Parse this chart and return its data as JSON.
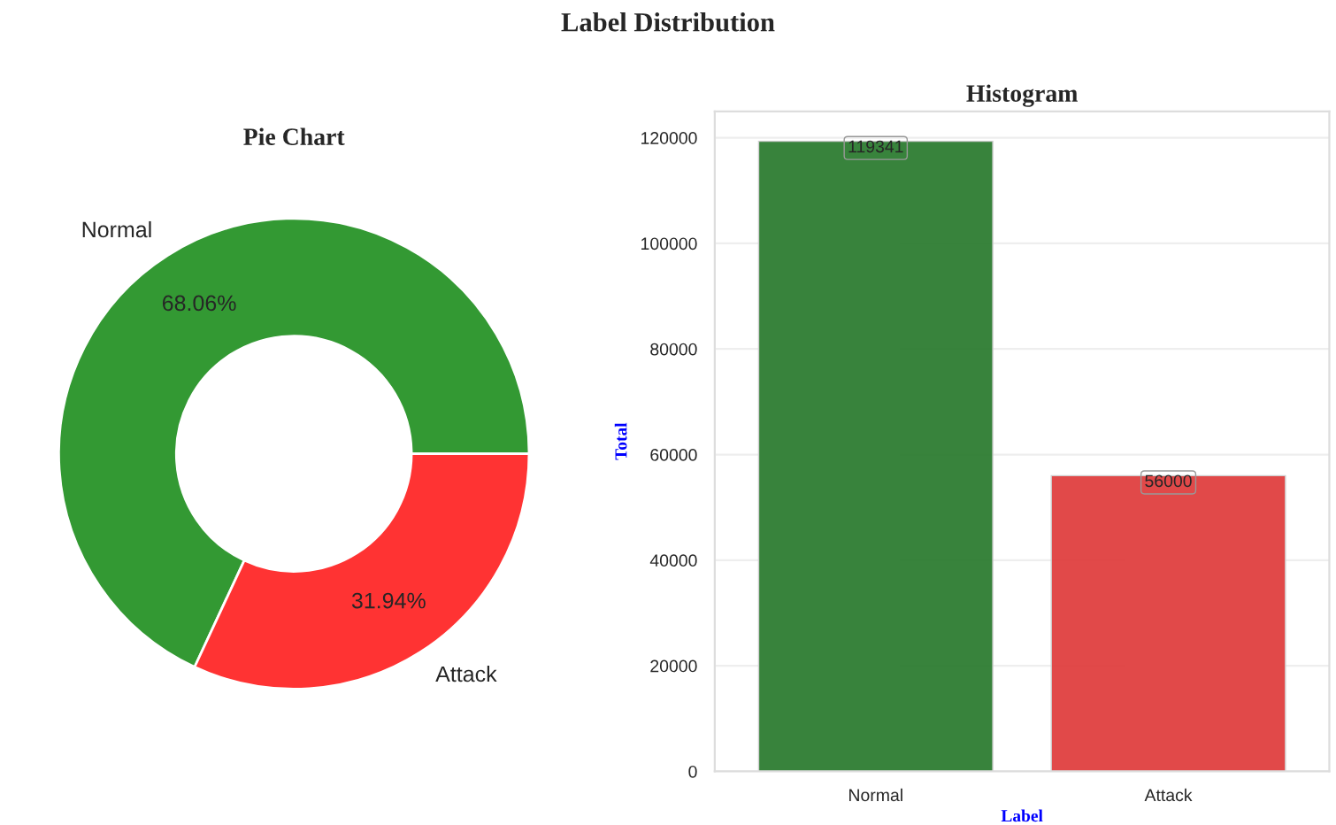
{
  "chart_data": [
    {
      "type": "donut",
      "title": "Pie Chart",
      "annotations": [
        "Label Distribution"
      ],
      "categories": [
        "Normal",
        "Attack"
      ],
      "values": [
        68.06,
        31.94
      ],
      "colors": [
        "#339933",
        "#ff3333"
      ],
      "value_labels": [
        "68.06%",
        "31.94%"
      ]
    },
    {
      "type": "bar",
      "title": "Histogram",
      "xlabel": "Label",
      "ylabel": "Total",
      "categories": [
        "Normal",
        "Attack"
      ],
      "series": [
        {
          "colors": [
            "#2e7d32",
            "#e04040"
          ],
          "values": [
            119341,
            56000
          ]
        }
      ],
      "ylim": [
        0,
        125000
      ],
      "yticks": [
        0,
        20000,
        40000,
        60000,
        80000,
        100000,
        120000
      ],
      "grid": "y",
      "data_labels": true
    }
  ]
}
